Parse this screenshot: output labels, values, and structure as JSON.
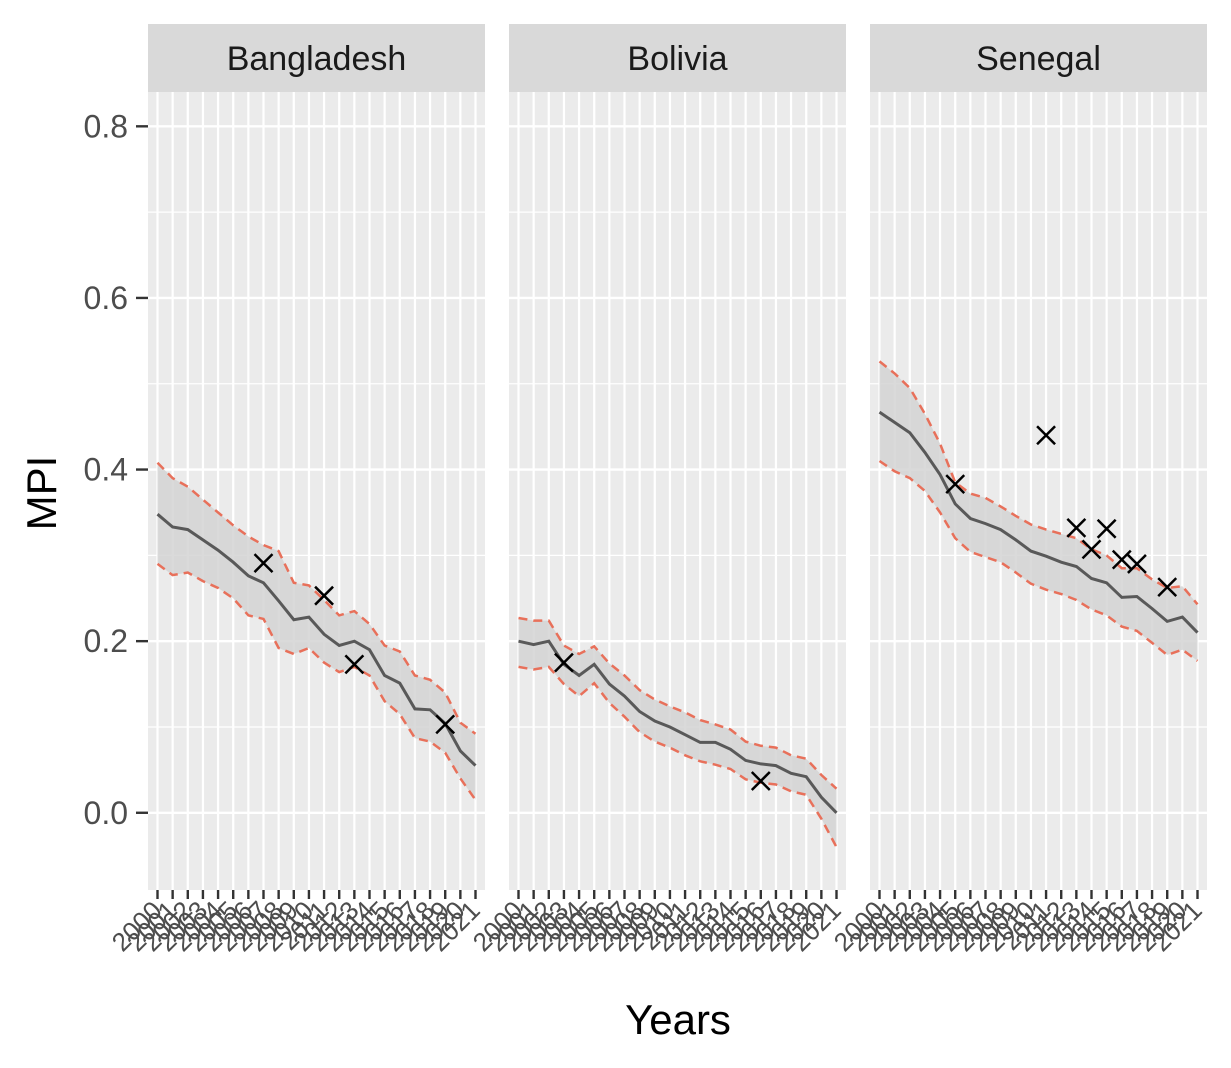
{
  "chart_data": {
    "type": "line",
    "xlabel": "Years",
    "ylabel": "MPI",
    "ylim": [
      -0.09,
      0.84
    ],
    "y_ticks": [
      "0.0",
      "0.2",
      "0.4",
      "0.6",
      "0.8"
    ],
    "x_categories": [
      "2000",
      "2001",
      "2002",
      "2003",
      "2004",
      "2005",
      "2006",
      "2007",
      "2008",
      "2009",
      "2010",
      "2011",
      "2012",
      "2013",
      "2014",
      "2015",
      "2016",
      "2017",
      "2018",
      "2019",
      "2020",
      "2021"
    ],
    "grid": true,
    "panel_background": "#EBEBEB",
    "strip_background": "#D9D9D9",
    "colors": {
      "line": "#595959",
      "band": "#D3D3D3",
      "bounds": "#E8705A",
      "points": "#000000"
    },
    "panels": [
      {
        "name": "Bangladesh",
        "series": [
          {
            "role": "estimate",
            "values": [
              0.348,
              0.333,
              0.33,
              0.318,
              0.306,
              0.292,
              0.276,
              0.268,
              0.247,
              0.225,
              0.228,
              0.208,
              0.195,
              0.2,
              0.19,
              0.16,
              0.151,
              0.121,
              0.12,
              0.104,
              0.072,
              0.055
            ]
          },
          {
            "role": "upper",
            "values": [
              0.408,
              0.39,
              0.38,
              0.365,
              0.35,
              0.335,
              0.322,
              0.312,
              0.305,
              0.268,
              0.265,
              0.248,
              0.23,
              0.235,
              0.22,
              0.195,
              0.188,
              0.16,
              0.155,
              0.14,
              0.105,
              0.092
            ]
          },
          {
            "role": "lower",
            "values": [
              0.29,
              0.277,
              0.28,
              0.27,
              0.262,
              0.25,
              0.23,
              0.226,
              0.192,
              0.185,
              0.192,
              0.175,
              0.164,
              0.17,
              0.16,
              0.13,
              0.115,
              0.087,
              0.083,
              0.07,
              0.04,
              0.015
            ]
          }
        ],
        "points": [
          {
            "x": 7.0,
            "y": 0.291
          },
          {
            "x": 11.0,
            "y": 0.253
          },
          {
            "x": 13.0,
            "y": 0.173
          },
          {
            "x": 19.0,
            "y": 0.103
          }
        ]
      },
      {
        "name": "Bolivia",
        "series": [
          {
            "role": "estimate",
            "values": [
              0.2,
              0.196,
              0.2,
              0.173,
              0.16,
              0.173,
              0.15,
              0.136,
              0.118,
              0.107,
              0.1,
              0.091,
              0.082,
              0.082,
              0.074,
              0.061,
              0.057,
              0.055,
              0.046,
              0.042,
              0.018,
              0.0
            ]
          },
          {
            "role": "upper",
            "values": [
              0.227,
              0.224,
              0.224,
              0.195,
              0.185,
              0.194,
              0.174,
              0.16,
              0.143,
              0.132,
              0.124,
              0.117,
              0.108,
              0.103,
              0.097,
              0.083,
              0.078,
              0.076,
              0.067,
              0.063,
              0.044,
              0.028
            ]
          },
          {
            "role": "lower",
            "values": [
              0.17,
              0.167,
              0.17,
              0.15,
              0.136,
              0.151,
              0.128,
              0.112,
              0.094,
              0.083,
              0.076,
              0.067,
              0.06,
              0.056,
              0.051,
              0.039,
              0.035,
              0.033,
              0.025,
              0.021,
              -0.007,
              -0.04
            ]
          }
        ],
        "points": [
          {
            "x": 3.0,
            "y": 0.175
          },
          {
            "x": 16.0,
            "y": 0.037
          }
        ]
      },
      {
        "name": "Senegal",
        "series": [
          {
            "role": "estimate",
            "values": [
              0.467,
              0.455,
              0.443,
              0.42,
              0.394,
              0.36,
              0.343,
              0.337,
              0.33,
              0.318,
              0.305,
              0.299,
              0.292,
              0.287,
              0.273,
              0.268,
              0.251,
              0.252,
              0.238,
              0.223,
              0.228,
              0.21
            ]
          },
          {
            "role": "upper",
            "values": [
              0.526,
              0.512,
              0.495,
              0.465,
              0.43,
              0.385,
              0.372,
              0.367,
              0.357,
              0.346,
              0.336,
              0.33,
              0.325,
              0.32,
              0.307,
              0.3,
              0.285,
              0.285,
              0.272,
              0.262,
              0.264,
              0.243
            ]
          },
          {
            "role": "lower",
            "values": [
              0.41,
              0.398,
              0.39,
              0.375,
              0.35,
              0.32,
              0.304,
              0.298,
              0.292,
              0.28,
              0.267,
              0.26,
              0.255,
              0.248,
              0.237,
              0.23,
              0.217,
              0.212,
              0.198,
              0.184,
              0.19,
              0.177
            ]
          }
        ],
        "points": [
          {
            "x": 5.0,
            "y": 0.383
          },
          {
            "x": 11.0,
            "y": 0.44
          },
          {
            "x": 13.0,
            "y": 0.332
          },
          {
            "x": 14.0,
            "y": 0.307
          },
          {
            "x": 15.0,
            "y": 0.331
          },
          {
            "x": 16.0,
            "y": 0.295
          },
          {
            "x": 17.0,
            "y": 0.29
          },
          {
            "x": 19.0,
            "y": 0.263
          }
        ]
      }
    ]
  }
}
